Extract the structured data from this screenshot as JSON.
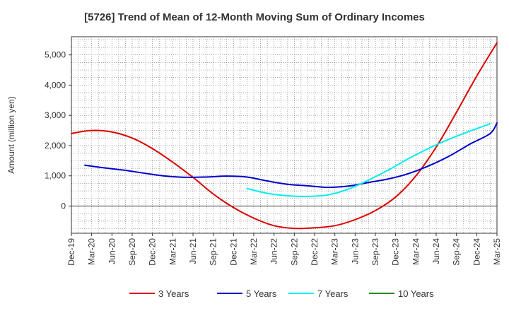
{
  "chart_data": {
    "type": "line",
    "title": "[5726]  Trend of Mean of 12-Month Moving Sum of Ordinary Incomes",
    "xlabel": "",
    "ylabel": "Amount (million yen)",
    "ylim": [
      -900,
      5600
    ],
    "yticks": [
      0,
      1000,
      2000,
      3000,
      4000,
      5000
    ],
    "ytick_labels": [
      "0",
      "1,000",
      "2,000",
      "3,000",
      "4,000",
      "5,000"
    ],
    "x_start_month": 0,
    "x_end_month": 63,
    "xticks": [
      0,
      3,
      6,
      9,
      12,
      15,
      18,
      21,
      24,
      27,
      30,
      33,
      36,
      39,
      42,
      45,
      48,
      51,
      54,
      57,
      60,
      63
    ],
    "xtick_labels": [
      "Dec-19",
      "Mar-20",
      "Jun-20",
      "Sep-20",
      "Dec-20",
      "Mar-21",
      "Jun-21",
      "Sep-21",
      "Dec-21",
      "Mar-22",
      "Jun-22",
      "Sep-22",
      "Dec-22",
      "Mar-23",
      "Jun-23",
      "Sep-23",
      "Dec-23",
      "Mar-24",
      "Jun-24",
      "Sep-24",
      "Dec-24",
      "Mar-25"
    ],
    "grid": true,
    "legend_position": "bottom",
    "series": [
      {
        "name": "3 Years",
        "color": "#dd0000",
        "points": [
          [
            0,
            2400
          ],
          [
            3,
            2500
          ],
          [
            6,
            2450
          ],
          [
            9,
            2250
          ],
          [
            12,
            1900
          ],
          [
            15,
            1450
          ],
          [
            18,
            950
          ],
          [
            21,
            400
          ],
          [
            24,
            -50
          ],
          [
            27,
            -400
          ],
          [
            30,
            -650
          ],
          [
            33,
            -740
          ],
          [
            36,
            -720
          ],
          [
            39,
            -650
          ],
          [
            42,
            -450
          ],
          [
            45,
            -150
          ],
          [
            48,
            300
          ],
          [
            51,
            1000
          ],
          [
            54,
            1950
          ],
          [
            57,
            3100
          ],
          [
            60,
            4300
          ],
          [
            63,
            5400
          ]
        ]
      },
      {
        "name": "5 Years",
        "color": "#0000cc",
        "points": [
          [
            2,
            1350
          ],
          [
            5,
            1260
          ],
          [
            8,
            1180
          ],
          [
            11,
            1080
          ],
          [
            14,
            990
          ],
          [
            17,
            950
          ],
          [
            20,
            960
          ],
          [
            23,
            990
          ],
          [
            26,
            960
          ],
          [
            29,
            830
          ],
          [
            32,
            720
          ],
          [
            35,
            670
          ],
          [
            38,
            620
          ],
          [
            41,
            660
          ],
          [
            44,
            780
          ],
          [
            47,
            900
          ],
          [
            50,
            1080
          ],
          [
            53,
            1340
          ],
          [
            56,
            1660
          ],
          [
            59,
            2050
          ],
          [
            62,
            2400
          ],
          [
            63,
            2750
          ]
        ]
      },
      {
        "name": "7 Years",
        "color": "#00eeee",
        "points": [
          [
            26,
            580
          ],
          [
            29,
            420
          ],
          [
            32,
            340
          ],
          [
            35,
            320
          ],
          [
            38,
            370
          ],
          [
            41,
            560
          ],
          [
            44,
            860
          ],
          [
            47,
            1200
          ],
          [
            50,
            1580
          ],
          [
            53,
            1920
          ],
          [
            56,
            2220
          ],
          [
            59,
            2480
          ],
          [
            62,
            2720
          ]
        ]
      },
      {
        "name": "10 Years",
        "color": "#228B22",
        "points": []
      }
    ]
  }
}
